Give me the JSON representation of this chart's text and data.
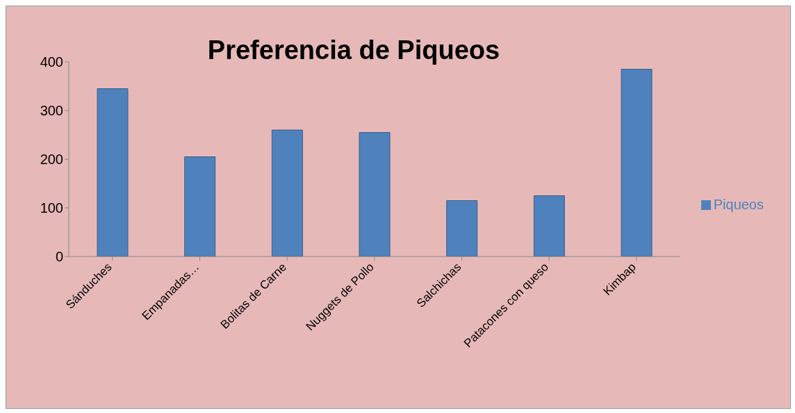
{
  "chart_data": {
    "type": "bar",
    "title": "Preferencia de Piqueos",
    "categories": [
      "Sánduches",
      "Empanadas…",
      "Bolitas de Carne",
      "Nuggets de Pollo",
      "Salchichas",
      "Patacones con queso",
      "Kimbap"
    ],
    "series": [
      {
        "name": "Piqueos",
        "color": "#4f81bd",
        "values": [
          345,
          205,
          260,
          255,
          115,
          125,
          385
        ]
      }
    ],
    "ylim": [
      0,
      400
    ],
    "yticks": [
      0,
      100,
      200,
      300,
      400
    ],
    "grid": false,
    "legend": "right"
  }
}
